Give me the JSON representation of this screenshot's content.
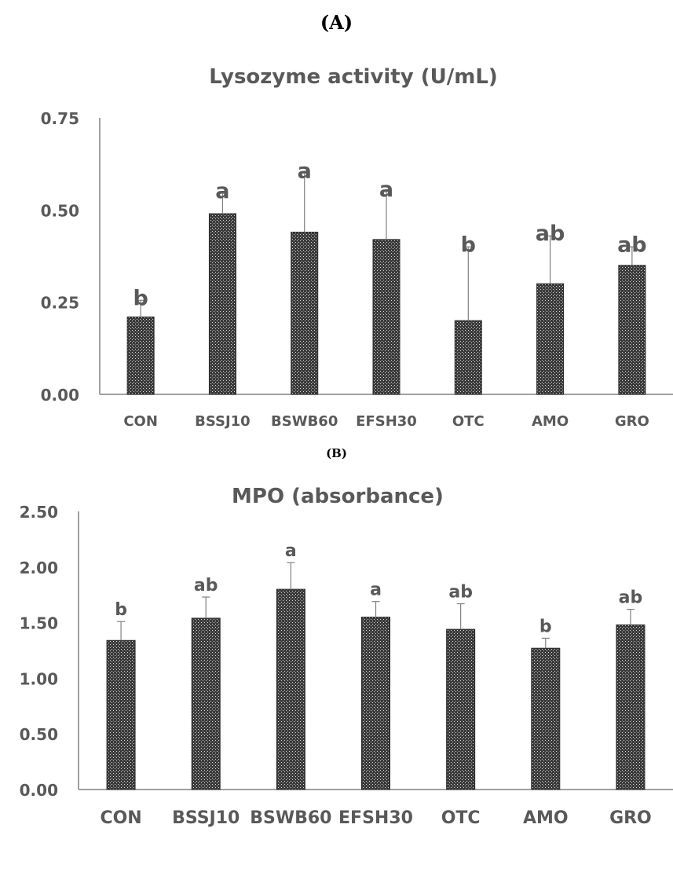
{
  "panels": {
    "a_label": "(A)",
    "b_label": "(B)"
  },
  "colors": {
    "text": "#595959",
    "bar_fill": "#3a3a3a",
    "bar_pattern": "#d9d9d9",
    "axis": "#808080",
    "error_bar": "#808080"
  },
  "chart_data": [
    {
      "type": "bar",
      "title": "Lysozyme activity (U/mL)",
      "categories": [
        "CON",
        "BSSJ10",
        "BSWB60",
        "EFSH30",
        "OTC",
        "AMO",
        "GRO"
      ],
      "values": [
        0.21,
        0.49,
        0.44,
        0.42,
        0.2,
        0.3,
        0.35
      ],
      "error_upper": [
        0.255,
        0.545,
        0.6,
        0.55,
        0.4,
        0.43,
        0.4
      ],
      "significance": [
        "b",
        "a",
        "a",
        "a",
        "b",
        "ab",
        "ab"
      ],
      "ylim": [
        0,
        0.75
      ],
      "yticks": [
        "0.00",
        "0.25",
        "0.50",
        "0.75"
      ],
      "ytick_values": [
        0,
        0.25,
        0.5,
        0.75
      ],
      "xlabel": "",
      "ylabel": "",
      "grid": false,
      "legend": "none"
    },
    {
      "type": "bar",
      "title": "MPO (absorbance)",
      "categories": [
        "CON",
        "BSSJ10",
        "BSWB60",
        "EFSH30",
        "OTC",
        "AMO",
        "GRO"
      ],
      "values": [
        1.34,
        1.54,
        1.8,
        1.55,
        1.44,
        1.27,
        1.48
      ],
      "error_upper": [
        1.51,
        1.73,
        2.04,
        1.69,
        1.67,
        1.36,
        1.62
      ],
      "significance": [
        "b",
        "ab",
        "a",
        "a",
        "ab",
        "b",
        "ab"
      ],
      "ylim": [
        0,
        2.5
      ],
      "yticks": [
        "0.00",
        "0.50",
        "1.00",
        "1.50",
        "2.00",
        "2.50"
      ],
      "ytick_values": [
        0,
        0.5,
        1.0,
        1.5,
        2.0,
        2.5
      ],
      "xlabel": "",
      "ylabel": "",
      "grid": false,
      "legend": "none"
    }
  ]
}
